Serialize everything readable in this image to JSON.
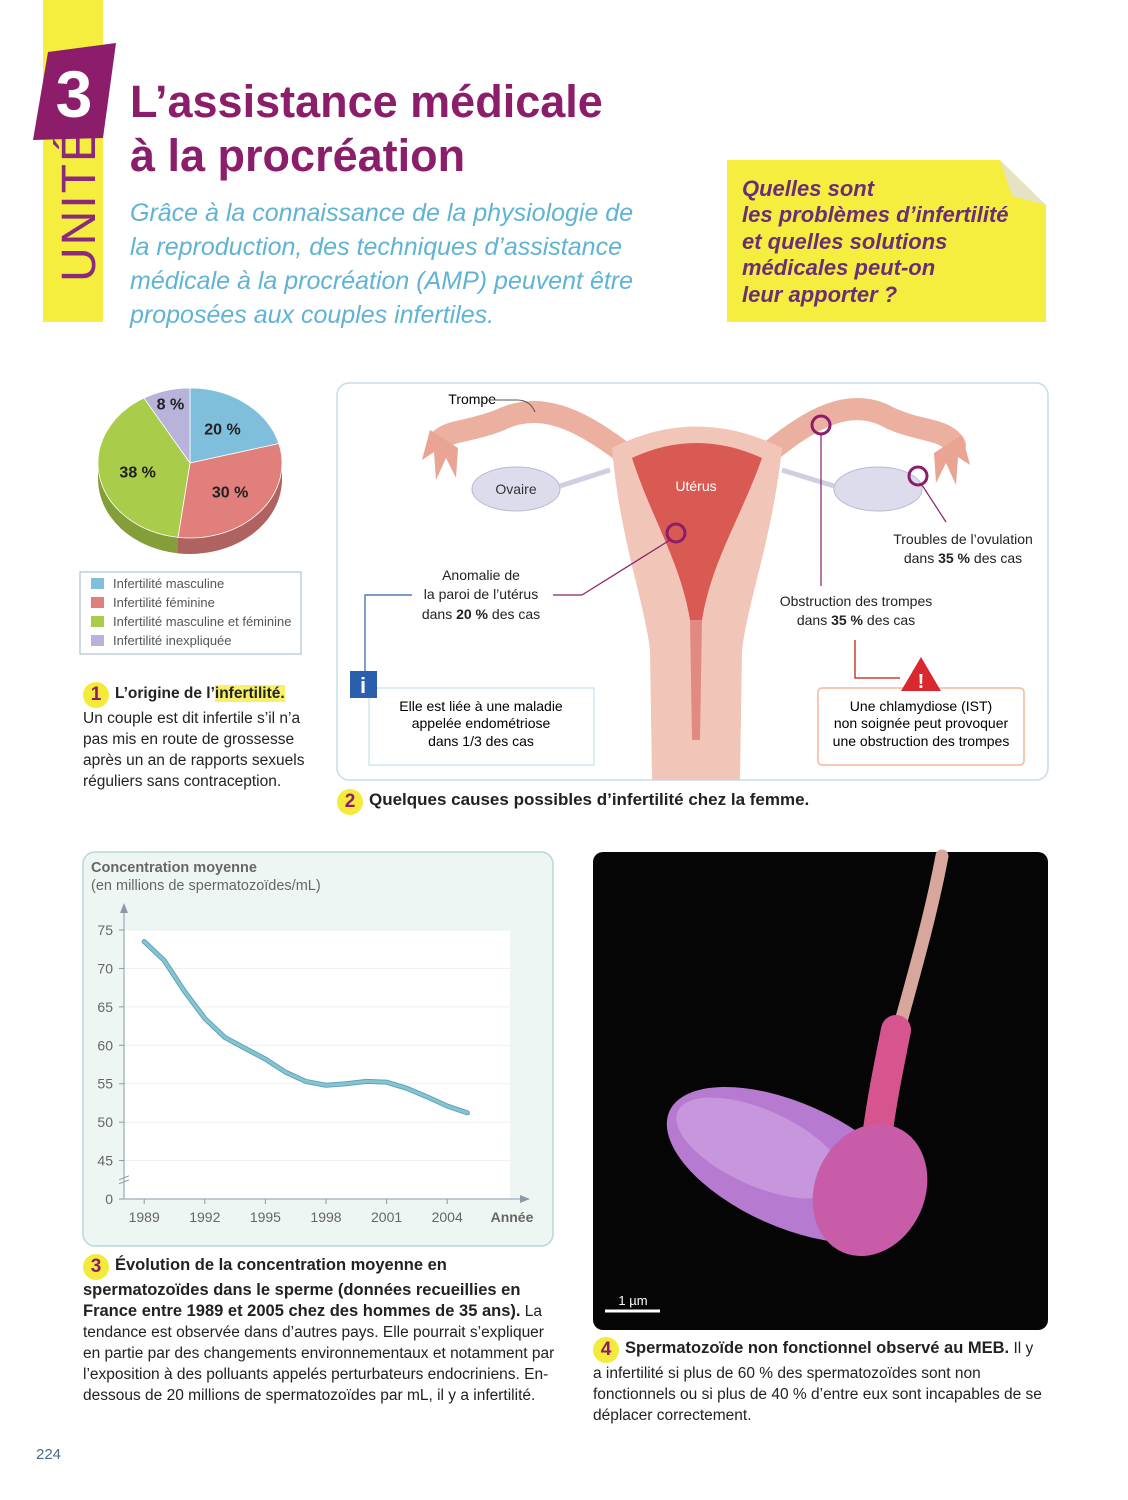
{
  "header": {
    "unit_label": "UNITÉ",
    "unit_number": "3",
    "title_lines": [
      "L’assistance médicale",
      "à la procréation"
    ],
    "intro_lines": [
      "Grâce à la connaissance de la physiologie de",
      "la reproduction, des techniques d’assistance",
      "médicale à la procréation (AMP) peuvent être",
      "proposées aux couples infertiles."
    ],
    "question_lines": [
      "Quelles sont",
      "les problèmes d’infertilité",
      "et quelles solutions",
      "médicales peut-on",
      "leur apporter ?"
    ]
  },
  "chart_data": [
    {
      "type": "pie",
      "categories": [
        "Infertilité masculine",
        "Infertilité féminine",
        "Infertilité masculine et féminine",
        "Infertilité inexpliquée"
      ],
      "values": [
        20,
        30,
        38,
        8
      ],
      "value_labels": [
        "20 %",
        "30 %",
        "38 %",
        "8 %"
      ],
      "colors": [
        "#7fbfdc",
        "#e07f7b",
        "#a9cc4a",
        "#b7b3da"
      ]
    },
    {
      "type": "line",
      "title": "Concentration moyenne",
      "subtitle": "(en millions de spermatozoïdes/mL)",
      "xlabel": "Année",
      "x": [
        1989,
        1990,
        1991,
        1992,
        1993,
        1994,
        1995,
        1996,
        1997,
        1998,
        1999,
        2000,
        2001,
        2002,
        2003,
        2004,
        2005
      ],
      "values": [
        73.5,
        71,
        67,
        63.5,
        61,
        59.6,
        58.2,
        56.5,
        55.3,
        54.8,
        55,
        55.3,
        55.2,
        54.4,
        53.3,
        52.1,
        51.2
      ],
      "color": "#86c4d3",
      "xlim": [
        1988,
        2008
      ],
      "ylim": [
        0,
        75
      ],
      "xticks": [
        1989,
        1992,
        1995,
        1998,
        2001,
        2004
      ],
      "yticks": [
        0,
        45,
        50,
        55,
        60,
        65,
        70,
        75
      ],
      "axis_break": true,
      "grid": true
    }
  ],
  "doc1": {
    "number": "1",
    "title": "L’origine de l’",
    "keyword": "infertilité.",
    "text": "Un couple est dit infertile s’il n’a pas mis en route de grossesse après un an de rapports sexuels réguliers sans contraception."
  },
  "doc2": {
    "number": "2",
    "caption": "Quelques causes possibles d’infertilité chez la femme.",
    "trompe": "Trompe",
    "ovaire": "Ovaire",
    "uterus": "Utérus",
    "anomaly": {
      "lines": [
        "Anomalie de",
        "la paroi de l’utérus"
      ],
      "pre": "dans",
      "bold": "20 %",
      "post": "des cas"
    },
    "ovulation": {
      "lines": [
        "Troubles de l’ovulation"
      ],
      "pre": "dans",
      "bold": "35 %",
      "post": "des cas"
    },
    "obstruction": {
      "lines": [
        "Obstruction des trompes"
      ],
      "pre": "dans",
      "bold": "35 %",
      "post": "des cas"
    },
    "info_icon": "i",
    "info_lines": [
      "Elle est liée à une maladie",
      "appelée endométriose",
      "dans 1/3 des cas"
    ],
    "warning_icon": "!",
    "warning_lines": [
      "Une chlamydiose (IST)",
      "non soignée peut provoquer",
      "une obstruction des trompes"
    ]
  },
  "doc3": {
    "number": "3",
    "title": "Évolution de la concentration moyenne en spermatozoïdes dans le sperme (données recueillies en France entre 1989 et 2005 chez des hommes de 35 ans).",
    "text": "La tendance est observée dans d’autres pays. Elle pourrait s’expliquer en partie par des changements environnementaux et notamment par l’exposition à des polluants appelés perturbateurs endocriniens. En-dessous de 20 millions de spermatozoïdes par mL, il y a infertilité."
  },
  "doc4": {
    "number": "4",
    "title": "Spermatozoïde non fonctionnel observé au MEB.",
    "text": "Il y a infertilité si plus de 60 % des spermatozoïdes sont non fonctionnels ou si plus de 40 % d’entre eux sont incapables de se déplacer correctement.",
    "scale_label": "1 µm"
  },
  "page_number": "224"
}
